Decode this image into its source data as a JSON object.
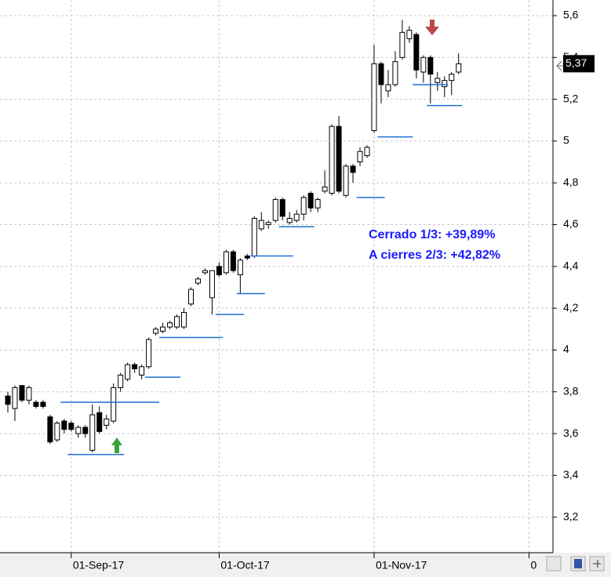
{
  "chart_data": {
    "type": "candlestick",
    "categories": [
      null,
      null,
      null,
      null,
      null,
      null,
      null,
      null,
      null,
      "01-Sep-17",
      null,
      null,
      null,
      null,
      null,
      null,
      null,
      null,
      null,
      null,
      null,
      null,
      null,
      null,
      null,
      null,
      null,
      null,
      null,
      null,
      "01-Oct-17",
      null,
      null,
      null,
      null,
      null,
      null,
      null,
      null,
      null,
      null,
      null,
      null,
      null,
      null,
      null,
      null,
      null,
      null,
      null,
      null,
      null,
      "01-Nov-17",
      null,
      null,
      null,
      null,
      null,
      null,
      null,
      null,
      null,
      null,
      null,
      null,
      null,
      null,
      null,
      null,
      null,
      null,
      null,
      null,
      null,
      "0"
    ],
    "open": [
      3.78,
      3.72,
      3.83,
      3.76,
      3.75,
      3.75,
      3.68,
      3.57,
      3.66,
      3.65,
      3.6,
      3.63,
      3.52,
      3.7,
      3.64,
      3.66,
      3.82,
      3.86,
      3.93,
      3.88,
      3.92,
      4.08,
      4.09,
      4.11,
      4.11,
      4.11,
      4.22,
      4.32,
      4.37,
      4.25,
      4.4,
      4.37,
      4.47,
      4.36,
      4.45,
      4.45,
      4.58,
      4.6,
      4.62,
      4.72,
      4.61,
      4.62,
      4.65,
      4.75,
      4.68,
      4.76,
      4.75,
      5.07,
      4.74,
      4.88,
      4.9,
      4.93,
      5.05,
      5.37,
      5.24,
      5.27,
      5.4,
      5.49,
      5.51,
      5.33,
      5.4,
      5.28,
      5.26,
      5.29,
      5.33,
      null,
      null,
      null,
      null,
      null,
      null,
      null,
      null,
      null,
      null
    ],
    "high": [
      3.8,
      3.83,
      3.83,
      3.83,
      3.76,
      3.76,
      3.69,
      3.66,
      3.67,
      3.66,
      3.64,
      3.64,
      3.74,
      3.73,
      3.69,
      3.84,
      3.89,
      3.94,
      3.94,
      3.93,
      4.06,
      4.11,
      4.13,
      4.14,
      4.17,
      4.2,
      4.3,
      4.35,
      4.39,
      4.38,
      4.42,
      4.48,
      4.48,
      4.44,
      4.46,
      4.64,
      4.66,
      4.62,
      4.73,
      4.73,
      4.66,
      4.67,
      4.74,
      4.76,
      4.73,
      4.86,
      5.08,
      5.12,
      4.89,
      4.89,
      4.97,
      4.98,
      5.46,
      5.38,
      5.34,
      5.43,
      5.58,
      5.55,
      5.52,
      5.41,
      5.41,
      5.33,
      5.31,
      5.33,
      5.42,
      null,
      null,
      null,
      null,
      null,
      null,
      null,
      null,
      null,
      null
    ],
    "low": [
      3.7,
      3.66,
      3.75,
      3.74,
      3.72,
      3.72,
      3.55,
      3.56,
      3.6,
      3.61,
      3.58,
      3.58,
      3.51,
      3.6,
      3.62,
      3.65,
      3.8,
      3.85,
      3.89,
      3.86,
      3.91,
      4.07,
      4.08,
      4.1,
      4.1,
      4.1,
      4.21,
      4.31,
      4.36,
      4.17,
      4.35,
      4.36,
      4.37,
      4.27,
      4.43,
      4.44,
      4.57,
      4.58,
      4.61,
      4.62,
      4.6,
      4.61,
      4.62,
      4.66,
      4.66,
      4.75,
      4.74,
      4.75,
      4.73,
      4.8,
      4.88,
      4.92,
      5.04,
      5.18,
      5.21,
      5.26,
      5.39,
      5.47,
      5.3,
      5.28,
      5.18,
      5.24,
      5.21,
      5.22,
      5.32,
      null,
      null,
      null,
      null,
      null,
      null,
      null,
      null,
      null,
      null
    ],
    "close": [
      3.74,
      3.82,
      3.76,
      3.82,
      3.73,
      3.73,
      3.56,
      3.65,
      3.62,
      3.62,
      3.63,
      3.6,
      3.69,
      3.61,
      3.67,
      3.82,
      3.88,
      3.93,
      3.91,
      3.92,
      4.05,
      4.1,
      4.11,
      4.13,
      4.16,
      4.18,
      4.29,
      4.34,
      4.38,
      4.38,
      4.36,
      4.47,
      4.38,
      4.43,
      4.44,
      4.63,
      4.62,
      4.61,
      4.72,
      4.64,
      4.63,
      4.65,
      4.73,
      4.68,
      4.72,
      4.78,
      5.07,
      4.76,
      4.88,
      4.85,
      4.95,
      4.97,
      5.37,
      5.27,
      5.27,
      5.38,
      5.52,
      5.53,
      5.34,
      5.4,
      5.32,
      5.3,
      5.29,
      5.32,
      5.37,
      null,
      null,
      null,
      null,
      null,
      null,
      null,
      null,
      null,
      null
    ],
    "stop_levels": [
      [
        null,
        null,
        null,
        null,
        null,
        null,
        null,
        null,
        3.75,
        3.75,
        3.75,
        3.75,
        3.75,
        3.75,
        3.75,
        3.75,
        3.75,
        3.75,
        3.75,
        3.75,
        3.75,
        3.75,
        4.06,
        4.06,
        4.06,
        4.06,
        4.06,
        4.06,
        4.06,
        4.06,
        4.06,
        null,
        null,
        4.27,
        4.27,
        4.27,
        4.27,
        null,
        null,
        4.59,
        4.59,
        4.59,
        4.59,
        4.59,
        null,
        null,
        null,
        null,
        null,
        null,
        null,
        null,
        null,
        5.02,
        5.02,
        5.02,
        5.02,
        5.02,
        null,
        null,
        5.17,
        5.17,
        5.17,
        5.17,
        5.17,
        null,
        null,
        null,
        null,
        null,
        null,
        null,
        null,
        null,
        null
      ],
      [
        null,
        null,
        null,
        null,
        null,
        null,
        null,
        null,
        null,
        3.5,
        3.5,
        3.5,
        3.5,
        3.5,
        3.5,
        3.5,
        3.5,
        null,
        null,
        null,
        3.87,
        3.87,
        3.87,
        3.87,
        3.87,
        null,
        null,
        null,
        null,
        null,
        4.17,
        4.17,
        4.17,
        4.17,
        null,
        4.45,
        4.45,
        4.45,
        4.45,
        4.45,
        4.45,
        null,
        null,
        null,
        null,
        null,
        null,
        null,
        null,
        null,
        4.73,
        4.73,
        4.73,
        4.73,
        null,
        null,
        null,
        null,
        5.27,
        5.27,
        5.27,
        5.27,
        5.27,
        null,
        null,
        null,
        null,
        null,
        null,
        null,
        null,
        null,
        null,
        null,
        null
      ]
    ],
    "stop_color": "#1f6fd1",
    "up_color": "#ffffff",
    "down_color": "#000000",
    "last_price": {
      "value": 5.37,
      "label": "5,37"
    },
    "annotations": [
      "Cerrado 1/3: +39,89%",
      "A cierres 2/3: +42,82%"
    ],
    "ylim": [
      3.03,
      5.675
    ],
    "yticks": [
      {
        "value": 3.2,
        "label": "3,2"
      },
      {
        "value": 3.4,
        "label": "3,4"
      },
      {
        "value": 3.6,
        "label": "3,6"
      },
      {
        "value": 3.8,
        "label": "3,8"
      },
      4,
      {
        "value": 4.2,
        "label": "4,2"
      },
      {
        "value": 4.4,
        "label": "4,4"
      },
      {
        "value": 4.6,
        "label": "4,6"
      },
      {
        "value": 4.8,
        "label": "4,8"
      },
      5,
      {
        "value": 5.2,
        "label": "5,2"
      },
      {
        "value": 5.4,
        "label": "5,4"
      },
      {
        "value": 5.6,
        "label": "5,6"
      }
    ],
    "grid": true
  }
}
